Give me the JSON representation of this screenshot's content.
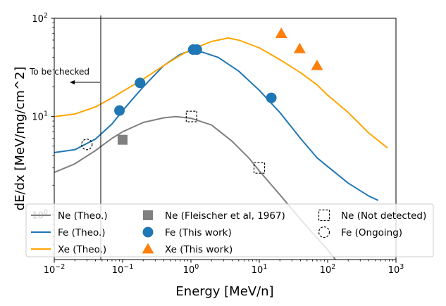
{
  "chart_data": {
    "type": "line",
    "xscale": "log",
    "yscale": "log",
    "xlim": [
      0.01,
      1000
    ],
    "ylim": [
      0.35,
      100
    ],
    "xlabel": "Energy [MeV/n]",
    "ylabel": "dE/dx [MeV/mg/cm^2]",
    "xticks": [
      {
        "value": 0.01,
        "base": "10",
        "exp": "−2"
      },
      {
        "value": 0.1,
        "base": "10",
        "exp": "−1"
      },
      {
        "value": 1,
        "base": "10",
        "exp": "0"
      },
      {
        "value": 10,
        "base": "10",
        "exp": "1"
      },
      {
        "value": 100,
        "base": "10",
        "exp": "2"
      },
      {
        "value": 1000,
        "base": "10",
        "exp": "3"
      }
    ],
    "yticks": [
      {
        "value": 1,
        "base": "10",
        "exp": "0"
      },
      {
        "value": 10,
        "base": "10",
        "exp": "1"
      },
      {
        "value": 100,
        "base": "10",
        "exp": "2"
      }
    ],
    "series": [
      {
        "name": "Ne (Theo.)",
        "color": "#808080",
        "kind": "line",
        "points": [
          [
            0.01,
            2.7
          ],
          [
            0.02,
            3.3
          ],
          [
            0.04,
            4.5
          ],
          [
            0.07,
            6.0
          ],
          [
            0.1,
            7.0
          ],
          [
            0.2,
            8.7
          ],
          [
            0.4,
            9.7
          ],
          [
            0.6,
            10.0
          ],
          [
            1,
            9.6
          ],
          [
            2,
            8.2
          ],
          [
            4,
            5.6
          ],
          [
            7,
            3.8
          ],
          [
            10,
            2.8
          ],
          [
            20,
            1.6
          ],
          [
            40,
            0.9
          ],
          [
            70,
            0.58
          ],
          [
            100,
            0.44
          ],
          [
            130,
            0.35
          ]
        ]
      },
      {
        "name": "Fe (Theo.)",
        "color": "#1f77b4",
        "kind": "line",
        "points": [
          [
            0.01,
            4.3
          ],
          [
            0.02,
            4.6
          ],
          [
            0.04,
            5.9
          ],
          [
            0.07,
            8.4
          ],
          [
            0.1,
            11.5
          ],
          [
            0.2,
            20
          ],
          [
            0.4,
            33
          ],
          [
            0.7,
            43
          ],
          [
            1,
            47
          ],
          [
            1.5,
            45
          ],
          [
            2.5,
            40
          ],
          [
            5,
            29
          ],
          [
            10,
            18.5
          ],
          [
            20,
            11
          ],
          [
            40,
            6.0
          ],
          [
            70,
            3.8
          ],
          [
            100,
            3.1
          ],
          [
            200,
            2.1
          ],
          [
            400,
            1.55
          ],
          [
            550,
            1.4
          ]
        ]
      },
      {
        "name": "Xe (Theo.)",
        "color": "#ffa500",
        "kind": "line",
        "points": [
          [
            0.01,
            10
          ],
          [
            0.02,
            10.6
          ],
          [
            0.04,
            12.5
          ],
          [
            0.07,
            15.5
          ],
          [
            0.1,
            18
          ],
          [
            0.2,
            24
          ],
          [
            0.4,
            33
          ],
          [
            0.7,
            42
          ],
          [
            1,
            48
          ],
          [
            2,
            58
          ],
          [
            3.5,
            63
          ],
          [
            5,
            60
          ],
          [
            10,
            50
          ],
          [
            20,
            38
          ],
          [
            40,
            28
          ],
          [
            70,
            21
          ],
          [
            100,
            16.5
          ],
          [
            200,
            11
          ],
          [
            400,
            6.8
          ],
          [
            750,
            4.8
          ]
        ]
      },
      {
        "name": "Ne (Fleischer et al, 1967)",
        "color": "#808080",
        "kind": "square",
        "points": [
          [
            0.1,
            5.8
          ]
        ]
      },
      {
        "name": "Fe (This work)",
        "color": "#1f77b4",
        "kind": "circle",
        "points": [
          [
            0.09,
            11.5
          ],
          [
            0.18,
            22
          ],
          [
            1.08,
            48
          ],
          [
            1.22,
            48
          ],
          [
            15,
            15.5
          ]
        ]
      },
      {
        "name": "Xe (This work)",
        "color": "#ff7f0e",
        "kind": "triangle",
        "points": [
          [
            21,
            70
          ],
          [
            39,
            49
          ],
          [
            70,
            33
          ]
        ]
      },
      {
        "name": "Ne (Not detected)",
        "color": "#000000",
        "kind": "open-square",
        "points": [
          [
            1.02,
            10
          ],
          [
            10,
            3.0
          ]
        ]
      },
      {
        "name": "Fe (Ongoing)",
        "color": "#000000",
        "kind": "open-circle",
        "points": [
          [
            0.03,
            5.2
          ]
        ]
      }
    ],
    "annotation": {
      "text": "To be checked",
      "x": 0.046,
      "arrow_from": 0.046,
      "arrow_to": 0.0135,
      "arrow_y": 26
    },
    "legend": {
      "position": "bottom-center",
      "columns": 3,
      "order": [
        "Ne (Theo.)",
        "Fe (Theo.)",
        "Xe (Theo.)",
        "Ne (Fleischer et al, 1967)",
        "Fe (This work)",
        "Xe (This work)",
        "Ne (Not detected)",
        "Fe (Ongoing)"
      ]
    }
  }
}
